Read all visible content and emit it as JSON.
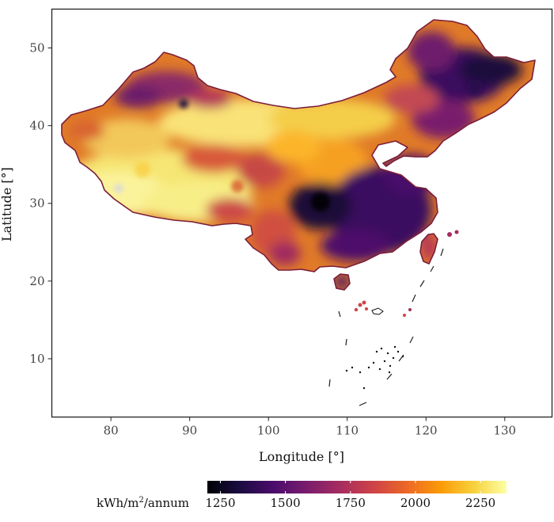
{
  "chart_data": {
    "type": "heatmap",
    "xlabel": "Longitude [°]",
    "ylabel": "Latitude [°]",
    "xlim": [
      72.5,
      136
    ],
    "ylim": [
      2.5,
      55
    ],
    "x_ticks": [
      80,
      90,
      100,
      110,
      120,
      130
    ],
    "y_ticks": [
      10,
      20,
      30,
      40,
      50
    ],
    "colorbar": {
      "unit_prefix": "kWh/m",
      "unit_sup": "2",
      "unit_suffix": "/annum",
      "range": [
        1200,
        2350
      ],
      "ticks": [
        1250,
        1500,
        1750,
        2000,
        2250
      ],
      "colormap": "inferno",
      "colors": [
        "#000004",
        "#1b0c41",
        "#4a0c6b",
        "#781c6d",
        "#a52c60",
        "#cf4446",
        "#ed6925",
        "#fb9b06",
        "#f7d13d",
        "#fcffa4"
      ]
    },
    "grid": false
  }
}
